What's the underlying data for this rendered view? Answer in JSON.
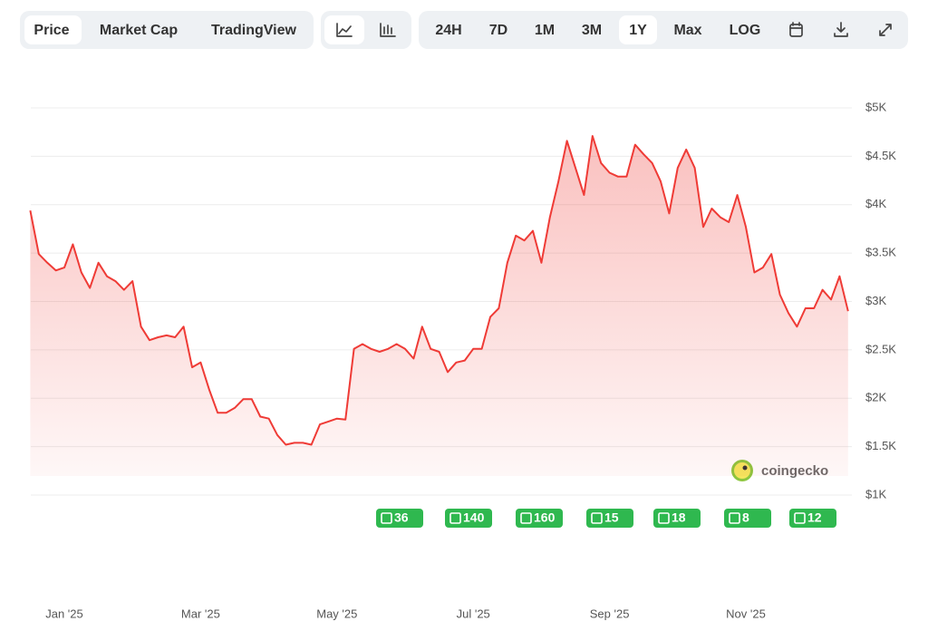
{
  "toolbar": {
    "views": [
      "Price",
      "Market Cap",
      "TradingView"
    ],
    "selected_view": 0,
    "ranges": [
      "24H",
      "7D",
      "1M",
      "3M",
      "1Y",
      "Max",
      "LOG"
    ],
    "selected_range": 4
  },
  "chart_data": {
    "type": "area",
    "color": "#ef3b36",
    "categories": [
      null,
      null,
      null,
      null,
      "Jan '25",
      null,
      null,
      null,
      null,
      null,
      null,
      null,
      null,
      null,
      null,
      null,
      null,
      null,
      null,
      null,
      "Mar '25",
      null,
      null,
      null,
      null,
      null,
      null,
      null,
      null,
      null,
      null,
      null,
      null,
      null,
      null,
      null,
      "May '25",
      null,
      null,
      null,
      null,
      null,
      null,
      null,
      null,
      null,
      null,
      null,
      null,
      null,
      null,
      null,
      "Jul '25",
      null,
      null,
      null,
      null,
      null,
      null,
      null,
      null,
      null,
      null,
      null,
      null,
      null,
      null,
      null,
      "Sep '25",
      null,
      null,
      null,
      null,
      null,
      null,
      null,
      null,
      null,
      null,
      null,
      null,
      null,
      null,
      null,
      "Nov '25",
      null,
      null,
      null,
      null,
      null,
      null,
      null,
      null,
      null,
      null,
      null,
      null
    ],
    "values": [
      3940,
      3490,
      3400,
      3320,
      3350,
      3590,
      3300,
      3140,
      3400,
      3260,
      3210,
      3120,
      3210,
      2740,
      2600,
      2630,
      2650,
      2630,
      2740,
      2320,
      2370,
      2090,
      1850,
      1850,
      1900,
      1990,
      1990,
      1810,
      1790,
      1620,
      1520,
      1540,
      1540,
      1520,
      1730,
      1760,
      1790,
      1780,
      2510,
      2560,
      2510,
      2480,
      2510,
      2560,
      2510,
      2410,
      2740,
      2510,
      2480,
      2270,
      2370,
      2390,
      2510,
      2510,
      2840,
      2930,
      3400,
      3680,
      3630,
      3730,
      3400,
      3870,
      4240,
      4660,
      4380,
      4100,
      4710,
      4430,
      4330,
      4290,
      4290,
      4620,
      4520,
      4430,
      4240,
      3910,
      4380,
      4570,
      4380,
      3770,
      3960,
      3870,
      3820,
      4100,
      3770,
      3300,
      3350,
      3490,
      3070,
      2880,
      2740,
      2930,
      2930,
      3120,
      3020,
      3260,
      2900
    ],
    "ylim": [
      1000,
      5000
    ],
    "yticks": [
      {
        "value": 1000,
        "label": "$1K"
      },
      {
        "value": 1500,
        "label": "$1.5K"
      },
      {
        "value": 2000,
        "label": "$2K"
      },
      {
        "value": 2500,
        "label": "$2.5K"
      },
      {
        "value": 3000,
        "label": "$3K"
      },
      {
        "value": 3500,
        "label": "$3.5K"
      },
      {
        "value": 4000,
        "label": "$4K"
      },
      {
        "value": 4500,
        "label": "$4.5K"
      },
      {
        "value": 5000,
        "label": "$5K"
      }
    ],
    "grid": true,
    "news_counts": [
      36,
      140,
      160,
      15,
      18,
      8,
      12
    ],
    "watermark": "coingecko"
  }
}
